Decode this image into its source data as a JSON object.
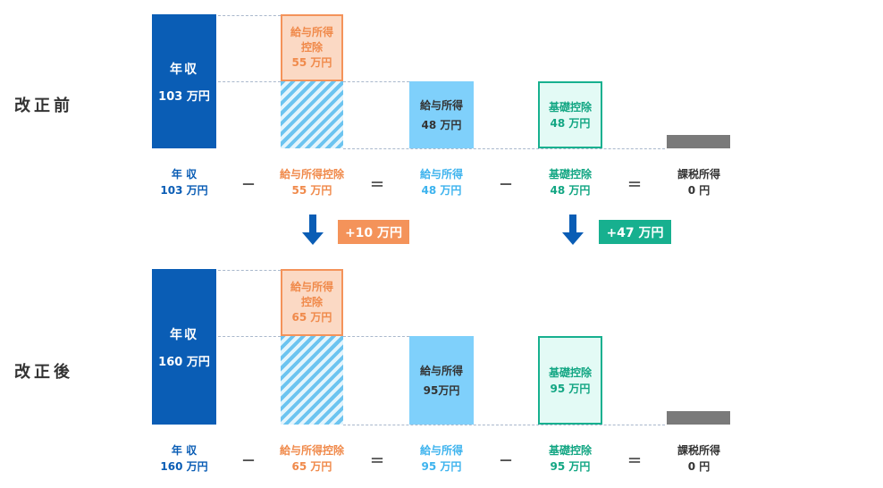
{
  "before": {
    "label": "改正前",
    "income_box": {
      "line1": "年収",
      "line2": "103 万円"
    },
    "employment_deduction_box": {
      "line1": "給与所得",
      "line2": "控除",
      "line3": "55 万円"
    },
    "employment_income_box": {
      "line1": "給与所得",
      "line2": "48 万円"
    },
    "basic_deduction_box": {
      "line1": "基礎控除",
      "line2": "48 万円"
    },
    "formula": {
      "income": {
        "line1": "年 収",
        "line2": "103 万円"
      },
      "employment_deduction": {
        "line1": "給与所得控除",
        "line2": "55 万円"
      },
      "employment_income": {
        "line1": "給与所得",
        "line2": "48 万円"
      },
      "basic_deduction": {
        "line1": "基礎控除",
        "line2": "48 万円"
      },
      "taxable_income": {
        "line1": "課税所得",
        "line2": "0 円"
      }
    }
  },
  "change": {
    "employment_deduction_delta": "+10 万円",
    "basic_deduction_delta": "+47 万円"
  },
  "after": {
    "label": "改正後",
    "income_box": {
      "line1": "年収",
      "line2": "160 万円"
    },
    "employment_deduction_box": {
      "line1": "給与所得",
      "line2": "控除",
      "line3": "65 万円"
    },
    "employment_income_box": {
      "line1": "給与所得",
      "line2": "95万円"
    },
    "basic_deduction_box": {
      "line1": "基礎控除",
      "line2": "95 万円"
    },
    "formula": {
      "income": {
        "line1": "年 収",
        "line2": "160 万円"
      },
      "employment_deduction": {
        "line1": "給与所得控除",
        "line2": "65 万円"
      },
      "employment_income": {
        "line1": "給与所得",
        "line2": "95 万円"
      },
      "basic_deduction": {
        "line1": "基礎控除",
        "line2": "95 万円"
      },
      "taxable_income": {
        "line1": "課税所得",
        "line2": "0 円"
      }
    }
  },
  "operators": {
    "minus": "－",
    "equals": "＝"
  },
  "colors": {
    "income": "#0a5db5",
    "employment_deduction": "#f4935a",
    "employment_income": "#7fd0fb",
    "basic_deduction": "#17b08f",
    "taxable_income": "#7a7a7a"
  }
}
